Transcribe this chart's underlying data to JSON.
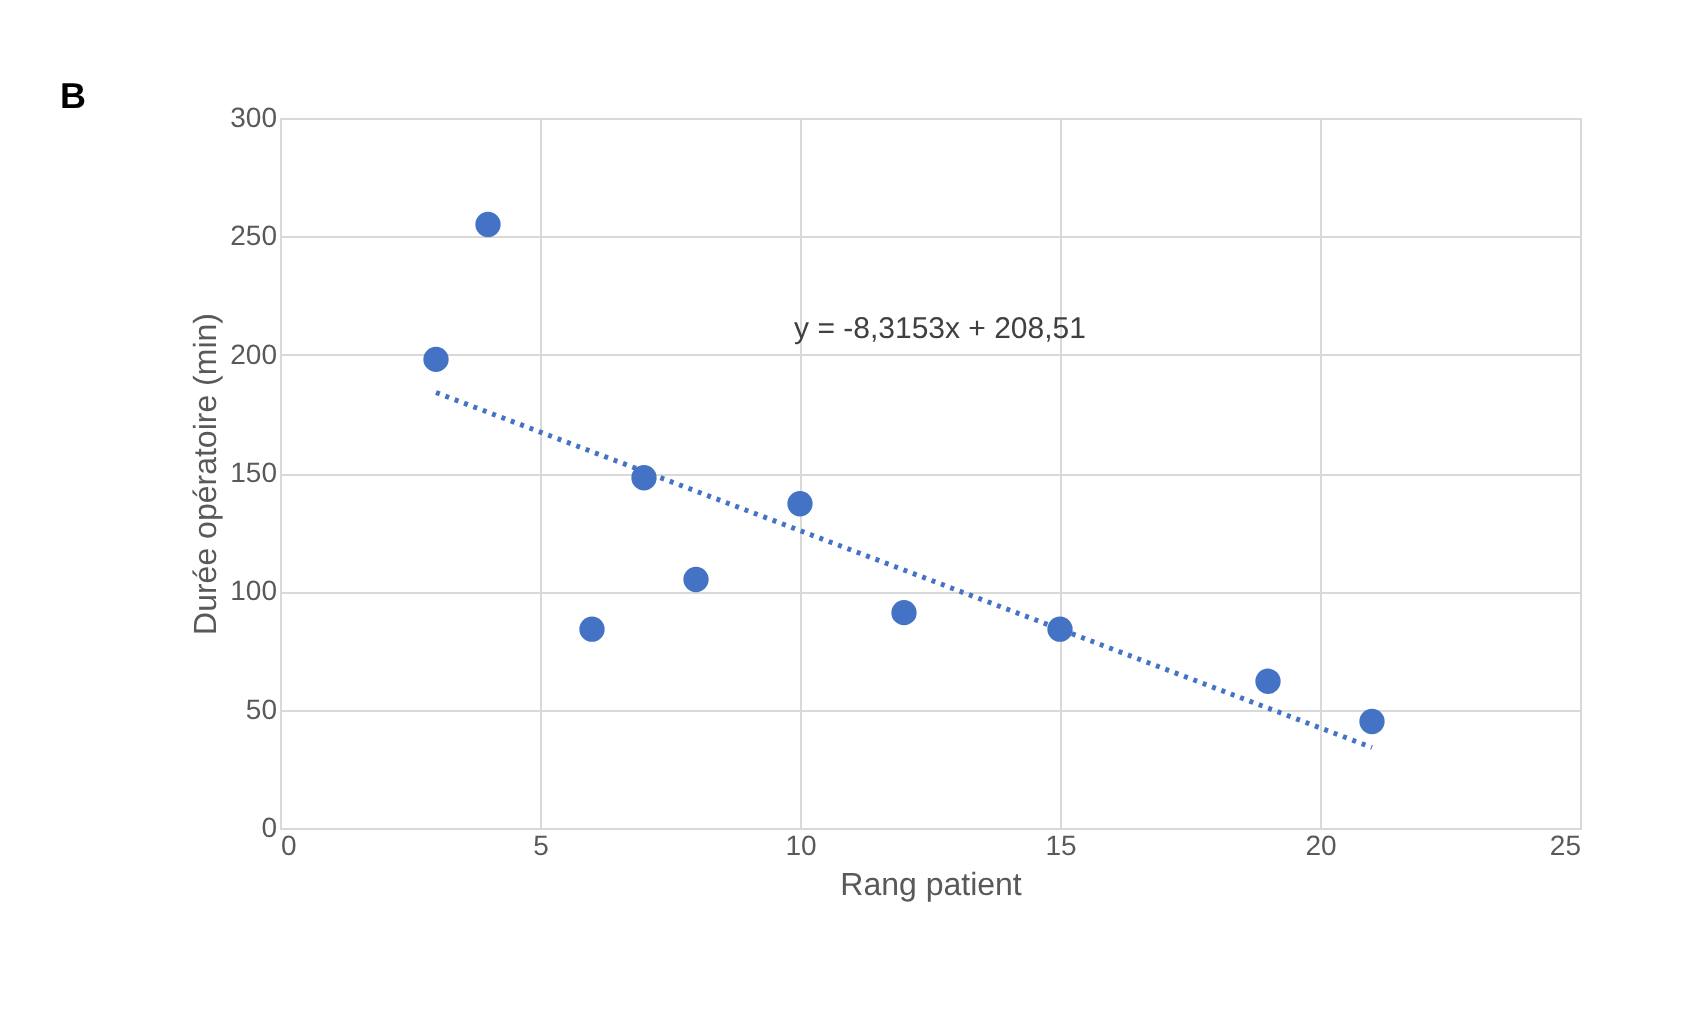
{
  "chart_data": {
    "type": "scatter",
    "xlabel": "Rang patient",
    "ylabel": "Durée opératoire (min)",
    "annotations": [
      "B",
      "y = -8,3153x + 208,51"
    ],
    "series": [
      {
        "color": "#4472c4",
        "x": [
          3,
          4,
          6,
          7,
          8,
          10,
          12,
          15,
          19,
          21
        ],
        "values": [
          198,
          255,
          84,
          148,
          105,
          137,
          91,
          84,
          62,
          45
        ],
        "marker": "circle"
      },
      {
        "type": "line",
        "color": "#4472c4",
        "x": [
          3,
          21
        ],
        "values": [
          184,
          34
        ],
        "line_style": "dotted"
      }
    ],
    "xlim": [
      0,
      25
    ],
    "xticks": [
      0,
      5,
      10,
      15,
      20,
      25
    ],
    "ylim": [
      0,
      300
    ],
    "yticks": [
      0,
      50,
      100,
      150,
      200,
      250,
      300
    ],
    "grid": true,
    "legend": false
  }
}
